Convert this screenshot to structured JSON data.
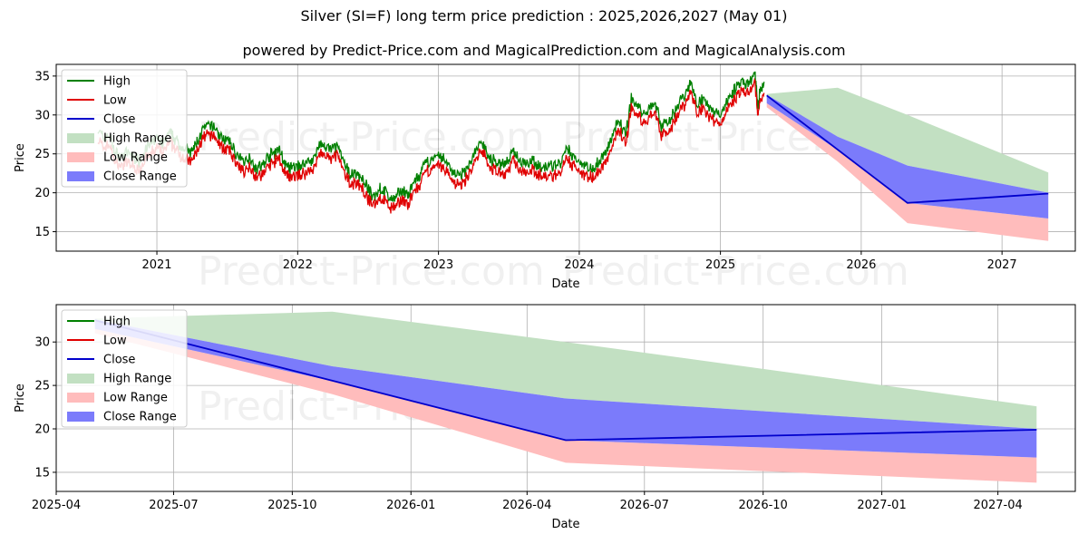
{
  "title": "Silver (SI=F) long term price prediction : 2025,2026,2027 (May 01)",
  "subtitle": "powered by Predict-Price.com and MagicalPrediction.com and MagicalAnalysis.com",
  "watermark": "Predict-Price.com",
  "colors": {
    "high": "#008000",
    "low": "#e00000",
    "close": "#0000cc",
    "high_range": "#c2e0c2",
    "low_range": "#ffbcbc",
    "close_range": "#7b7bfb",
    "grid": "#b0b0b0"
  },
  "legend": [
    "High",
    "Low",
    "Close",
    "High Range",
    "Low Range",
    "Close Range"
  ],
  "chart_data": [
    {
      "type": "line",
      "panel": "top",
      "xlabel": "Date",
      "ylabel": "Price",
      "xlim": [
        "2020-04-15",
        "2027-07-10"
      ],
      "ylim": [
        12.5,
        36.5
      ],
      "x_ticks": [
        "2021",
        "2022",
        "2023",
        "2024",
        "2025",
        "2026",
        "2027"
      ],
      "y_ticks": [
        15,
        20,
        25,
        30,
        35
      ],
      "grid": true,
      "legend_position": "top-left",
      "history": {
        "x": [
          "2020-08-01",
          "2020-08-15",
          "2020-09-01",
          "2020-09-15",
          "2020-10-01",
          "2020-10-15",
          "2020-11-01",
          "2020-11-15",
          "2020-12-01",
          "2020-12-15",
          "2021-01-01",
          "2021-01-15",
          "2021-02-01",
          "2021-02-15",
          "2021-03-01",
          "2021-03-15",
          "2021-04-01",
          "2021-04-15",
          "2021-05-01",
          "2021-05-15",
          "2021-06-01",
          "2021-06-15",
          "2021-07-01",
          "2021-07-15",
          "2021-08-01",
          "2021-08-15",
          "2021-09-01",
          "2021-09-15",
          "2021-10-01",
          "2021-10-15",
          "2021-11-01",
          "2021-11-15",
          "2021-12-01",
          "2021-12-15",
          "2022-01-01",
          "2022-01-15",
          "2022-02-01",
          "2022-02-15",
          "2022-03-01",
          "2022-03-15",
          "2022-04-01",
          "2022-04-15",
          "2022-05-01",
          "2022-05-15",
          "2022-06-01",
          "2022-06-15",
          "2022-07-01",
          "2022-07-15",
          "2022-08-01",
          "2022-08-15",
          "2022-09-01",
          "2022-09-15",
          "2022-10-01",
          "2022-10-15",
          "2022-11-01",
          "2022-11-15",
          "2022-12-01",
          "2022-12-15",
          "2023-01-01",
          "2023-01-15",
          "2023-02-01",
          "2023-02-15",
          "2023-03-01",
          "2023-03-15",
          "2023-04-01",
          "2023-04-15",
          "2023-05-01",
          "2023-05-15",
          "2023-06-01",
          "2023-06-15",
          "2023-07-01",
          "2023-07-15",
          "2023-08-01",
          "2023-08-15",
          "2023-09-01",
          "2023-09-15",
          "2023-10-01",
          "2023-10-15",
          "2023-11-01",
          "2023-11-15",
          "2023-12-01",
          "2023-12-15",
          "2024-01-01",
          "2024-01-15",
          "2024-02-01",
          "2024-02-15",
          "2024-03-01",
          "2024-03-15",
          "2024-04-01",
          "2024-04-15",
          "2024-05-01",
          "2024-05-15",
          "2024-06-01",
          "2024-06-15",
          "2024-07-01",
          "2024-07-15",
          "2024-08-01",
          "2024-08-15",
          "2024-09-01",
          "2024-09-15",
          "2024-10-01",
          "2024-10-15",
          "2024-11-01",
          "2024-11-15",
          "2024-12-01",
          "2024-12-15",
          "2025-01-01",
          "2025-01-15",
          "2025-02-01",
          "2025-02-15",
          "2025-03-01",
          "2025-03-15",
          "2025-04-01",
          "2025-04-08",
          "2025-04-15",
          "2025-04-25"
        ],
        "close": [
          27.5,
          26.5,
          26.8,
          24.5,
          24.0,
          24.5,
          24.0,
          23.5,
          25.0,
          25.5,
          26.5,
          25.5,
          27.0,
          26.5,
          25.5,
          25.0,
          24.5,
          26.0,
          27.5,
          28.0,
          27.8,
          26.5,
          26.2,
          25.5,
          23.8,
          23.5,
          24.0,
          22.5,
          22.8,
          24.0,
          24.5,
          25.0,
          22.8,
          22.5,
          22.8,
          23.0,
          23.5,
          24.0,
          26.0,
          25.0,
          25.0,
          25.5,
          23.0,
          22.0,
          21.8,
          21.5,
          20.0,
          18.8,
          20.0,
          19.5,
          18.5,
          19.0,
          19.8,
          19.0,
          21.0,
          21.5,
          23.5,
          23.5,
          24.0,
          23.8,
          22.5,
          21.8,
          21.5,
          22.5,
          24.0,
          25.5,
          25.5,
          23.5,
          23.5,
          23.0,
          23.5,
          24.8,
          23.5,
          23.5,
          23.5,
          23.0,
          22.5,
          22.8,
          23.0,
          23.2,
          25.0,
          24.0,
          23.5,
          23.0,
          22.5,
          23.0,
          24.0,
          25.0,
          27.5,
          28.5,
          27.0,
          31.5,
          30.5,
          29.5,
          30.5,
          31.0,
          28.0,
          28.5,
          29.5,
          31.0,
          32.0,
          33.5,
          31.0,
          31.5,
          30.5,
          29.8,
          29.5,
          31.0,
          32.5,
          33.0,
          33.5,
          33.5,
          34.5,
          30.5,
          32.8,
          33.0
        ]
      },
      "forecast": {
        "x": [
          "2025-05-01",
          "2025-11-01",
          "2026-05-01",
          "2027-05-01"
        ],
        "close": [
          32.5,
          null,
          18.7,
          19.9
        ],
        "close_range_upper": [
          32.6,
          27.2,
          23.5,
          20.0
        ],
        "close_range_lower": [
          31.5,
          25.5,
          18.7,
          16.7
        ],
        "high_range_upper": [
          32.7,
          33.5,
          30.0,
          22.6
        ],
        "low_range_lower": [
          31.0,
          24.0,
          16.1,
          13.8
        ]
      }
    },
    {
      "type": "line",
      "panel": "bottom",
      "xlabel": "Date",
      "ylabel": "Price",
      "xlim": [
        "2025-04-01",
        "2027-05-31"
      ],
      "ylim": [
        12.8,
        34.3
      ],
      "x_ticks": [
        "2025-04",
        "2025-07",
        "2025-10",
        "2026-01",
        "2026-04",
        "2026-07",
        "2026-10",
        "2027-01",
        "2027-04"
      ],
      "y_ticks": [
        15,
        20,
        25,
        30
      ],
      "grid": true,
      "legend_position": "top-left",
      "forecast": {
        "x": [
          "2025-05-01",
          "2025-11-01",
          "2026-05-01",
          "2027-05-01"
        ],
        "close": [
          32.5,
          null,
          18.7,
          19.9
        ],
        "close_range_upper": [
          32.6,
          27.2,
          23.5,
          20.0
        ],
        "close_range_lower": [
          31.5,
          25.5,
          18.7,
          16.7
        ],
        "high_range_upper": [
          32.7,
          33.5,
          30.0,
          22.6
        ],
        "low_range_lower": [
          31.0,
          24.0,
          16.1,
          13.8
        ]
      }
    }
  ]
}
